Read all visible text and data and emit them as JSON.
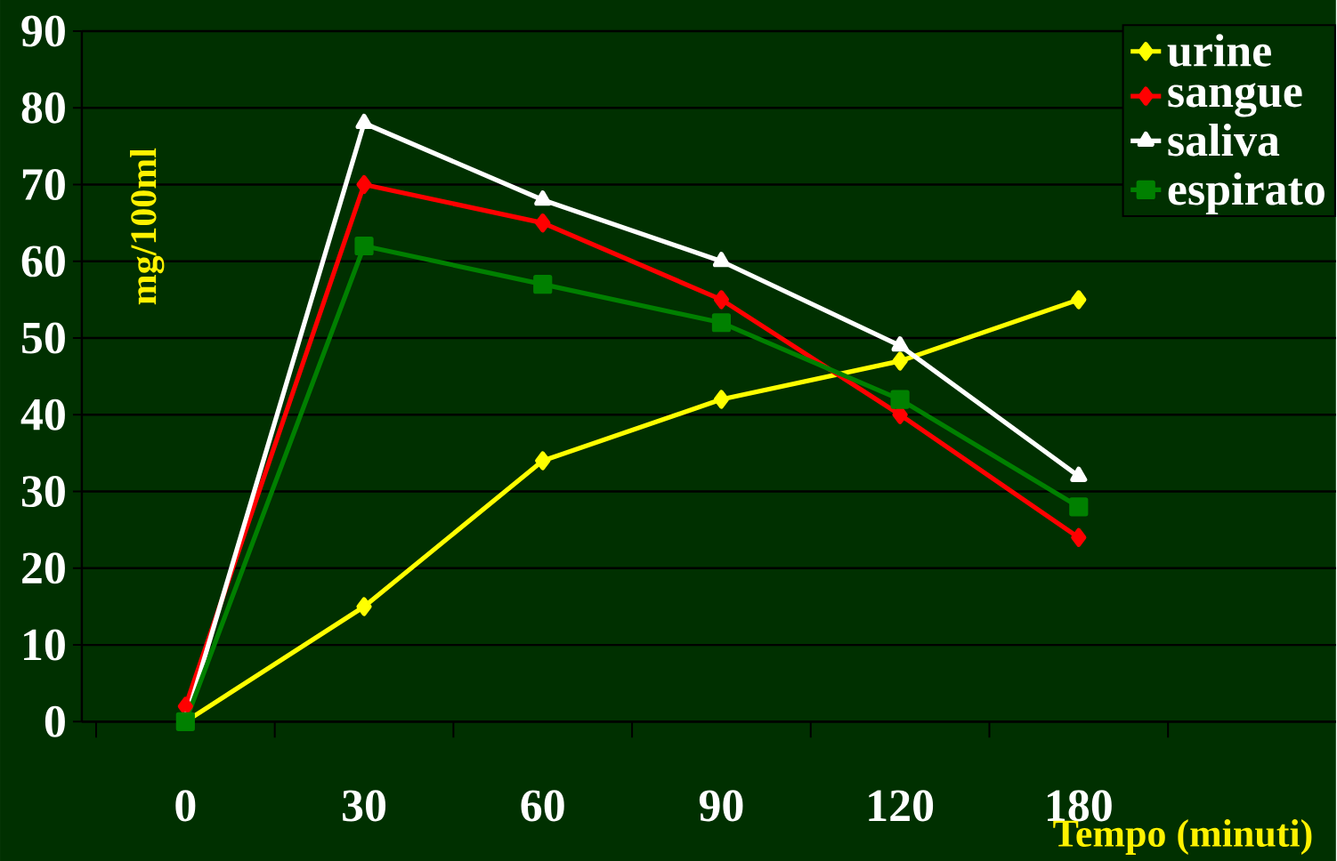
{
  "chart_data": {
    "type": "line",
    "xlabel": "Tempo (minuti)",
    "ylabel": "mg/100ml",
    "categories": [
      "0",
      "30",
      "60",
      "90",
      "120",
      "180"
    ],
    "series": [
      {
        "name": "urine",
        "color": "#ffff00",
        "marker": "diamond",
        "values": [
          0,
          15,
          34,
          42,
          47,
          55
        ]
      },
      {
        "name": "sangue",
        "color": "#ff0000",
        "marker": "diamond",
        "values": [
          2,
          70,
          65,
          55,
          40,
          24
        ]
      },
      {
        "name": "saliva",
        "color": "#ffffff",
        "marker": "triangle",
        "values": [
          0,
          78,
          68,
          60,
          49,
          32
        ]
      },
      {
        "name": "espirato",
        "color": "#008000",
        "marker": "square",
        "values": [
          0,
          62,
          57,
          52,
          42,
          28
        ]
      }
    ],
    "ylim": [
      0,
      90
    ],
    "yticks": [
      0,
      10,
      20,
      30,
      40,
      50,
      60,
      70,
      80,
      90
    ],
    "grid": "y",
    "legend": "top right",
    "line_style": "solid"
  }
}
